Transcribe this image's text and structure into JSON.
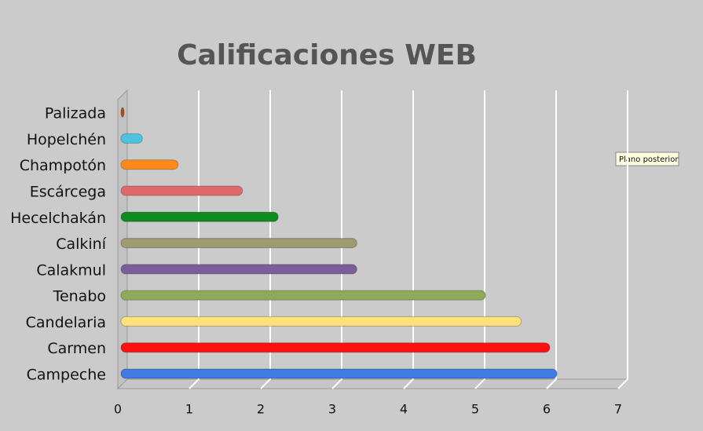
{
  "chart_data": {
    "type": "bar",
    "orientation": "horizontal",
    "title": "Calificaciones WEB",
    "categories": [
      "Campeche",
      "Carmen",
      "Candelaria",
      "Tenabo",
      "Calakmul",
      "Calkiní",
      "Hecelchakán",
      "Escárcega",
      "Champotón",
      "Hopelchén",
      "Palizada"
    ],
    "values": [
      6.1,
      6.0,
      5.6,
      5.1,
      3.3,
      3.3,
      2.2,
      1.7,
      0.8,
      0.3,
      0
    ],
    "colors": [
      "#3f7be0",
      "#ff1010",
      "#ffe27a",
      "#8faa58",
      "#7b5e98",
      "#a09a72",
      "#0f8a1e",
      "#e06a6a",
      "#ff8a1a",
      "#4cc4e0",
      "#b05010"
    ],
    "xlim": [
      0,
      7
    ],
    "xticks": [
      0,
      1,
      2,
      3,
      4,
      5,
      6,
      7
    ],
    "grid": true,
    "tooltip": "Plano posterior"
  }
}
